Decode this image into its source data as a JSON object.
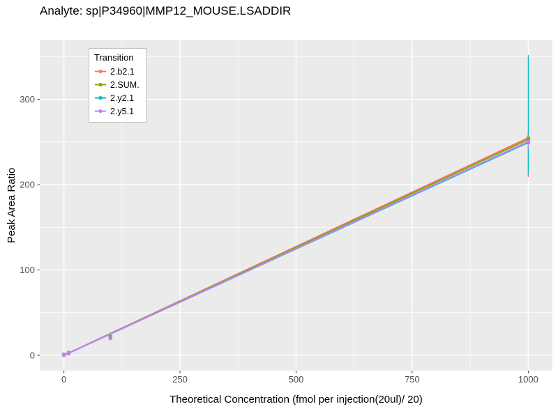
{
  "chart_data": {
    "type": "line",
    "title": "Analyte: sp|P34960|MMP12_MOUSE.LSADDIR",
    "xlabel": "Theoretical Concentration (fmol per injection(20ul)/ 20)",
    "ylabel": "Peak Area Ratio",
    "legend_title": "Transition",
    "legend_position": "inside-top-left",
    "grid": true,
    "xlim": [
      -52,
      1052
    ],
    "ylim": [
      -18,
      370
    ],
    "x_major_ticks": [
      0,
      250,
      500,
      750,
      1000
    ],
    "x_minor_ticks": [
      125,
      375,
      625,
      875
    ],
    "y_major_ticks": [
      0,
      100,
      200,
      300
    ],
    "y_minor_ticks": [
      50,
      150,
      250,
      350
    ],
    "panel_bg": "#EBEBEB",
    "grid_color": "#FFFFFF",
    "tick_color": "#333333",
    "tick_label_color": "#4D4D4D",
    "series": [
      {
        "name": "2.b2.1",
        "color": "#F8766D",
        "line": [
          [
            0,
            0
          ],
          [
            1000,
            255
          ]
        ],
        "points": [
          [
            0,
            0.5
          ],
          [
            10,
            2
          ],
          [
            100,
            20.5
          ],
          [
            1000,
            255
          ]
        ],
        "error_bars": [
          {
            "x": 1000,
            "ymin": 209,
            "ymax": 262
          }
        ]
      },
      {
        "name": "2.SUM.",
        "color": "#7CAE00",
        "line": [
          [
            0,
            0
          ],
          [
            1000,
            253
          ]
        ],
        "points": [
          [
            0,
            1
          ],
          [
            10,
            3
          ],
          [
            100,
            22
          ],
          [
            1000,
            253
          ]
        ],
        "error_bars": [
          {
            "x": 1000,
            "ymin": 246,
            "ymax": 262
          }
        ]
      },
      {
        "name": "2.y2.1",
        "color": "#00BFC4",
        "line": [
          [
            0,
            0
          ],
          [
            1000,
            249.5
          ]
        ],
        "points": [
          [
            0,
            0.3
          ],
          [
            10,
            2
          ],
          [
            100,
            20
          ],
          [
            1000,
            249.5
          ]
        ],
        "error_bars": [
          {
            "x": 1000,
            "ymin": 212,
            "ymax": 352
          }
        ]
      },
      {
        "name": "2.y5.1",
        "color": "#C77CFF",
        "line": [
          [
            0,
            0
          ],
          [
            1000,
            250.5
          ]
        ],
        "points": [
          [
            0,
            0.5
          ],
          [
            10,
            2
          ],
          [
            100,
            20
          ],
          [
            1000,
            250.5
          ]
        ],
        "error_bars": [
          {
            "x": 1000,
            "ymin": 242,
            "ymax": 258
          }
        ]
      }
    ]
  }
}
